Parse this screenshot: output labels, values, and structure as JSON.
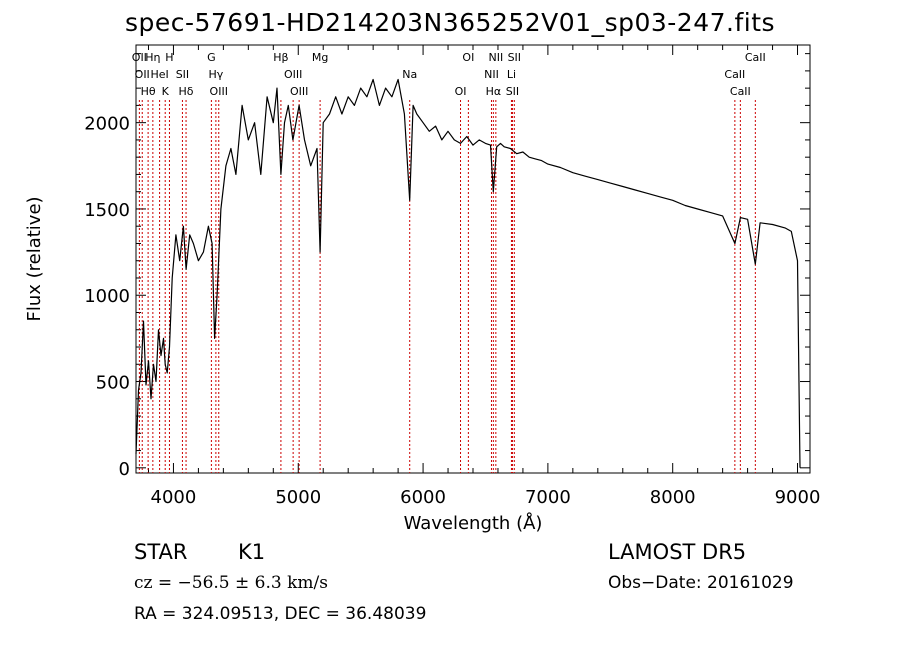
{
  "chart_data": {
    "type": "line",
    "title": "spec-57691-HD214203N365252V01_sp03-247.fits",
    "xlabel": "Wavelength (Å)",
    "ylabel": "Flux (relative)",
    "xlim": [
      3700,
      9100
    ],
    "ylim": [
      -30,
      2450
    ],
    "x_ticks": [
      4000,
      5000,
      6000,
      7000,
      8000,
      9000
    ],
    "y_ticks": [
      0,
      500,
      1000,
      1500,
      2000
    ],
    "grid": false,
    "series": [
      {
        "x": [
          3700,
          3720,
          3740,
          3760,
          3780,
          3800,
          3820,
          3840,
          3860,
          3880,
          3900,
          3920,
          3934,
          3950,
          3968,
          3990,
          4020,
          4050,
          4080,
          4101,
          4130,
          4160,
          4200,
          4240,
          4280,
          4310,
          4330,
          4350,
          4380,
          4420,
          4460,
          4500,
          4550,
          4600,
          4650,
          4700,
          4750,
          4800,
          4830,
          4861,
          4890,
          4920,
          4957,
          5007,
          5050,
          5100,
          5150,
          5175,
          5200,
          5250,
          5300,
          5350,
          5400,
          5450,
          5500,
          5550,
          5600,
          5650,
          5700,
          5750,
          5800,
          5850,
          5893,
          5920,
          5950,
          6000,
          6050,
          6100,
          6150,
          6200,
          6250,
          6300,
          6350,
          6400,
          6450,
          6500,
          6540,
          6563,
          6590,
          6620,
          6650,
          6700,
          6750,
          6800,
          6850,
          6900,
          6950,
          7000,
          7100,
          7200,
          7300,
          7400,
          7500,
          7600,
          7700,
          7800,
          7900,
          8000,
          8100,
          8200,
          8300,
          8400,
          8498,
          8542,
          8600,
          8662,
          8700,
          8800,
          8900,
          8950,
          9000,
          9020
        ],
        "y": [
          80,
          450,
          550,
          850,
          480,
          620,
          400,
          600,
          500,
          800,
          650,
          750,
          600,
          550,
          700,
          1100,
          1350,
          1200,
          1400,
          1150,
          1350,
          1300,
          1200,
          1250,
          1400,
          1300,
          750,
          1000,
          1500,
          1750,
          1850,
          1700,
          2100,
          1900,
          2000,
          1700,
          2150,
          2000,
          2200,
          1700,
          2000,
          2100,
          1900,
          2100,
          1900,
          1750,
          1850,
          1250,
          2000,
          2050,
          2150,
          2050,
          2150,
          2100,
          2200,
          2150,
          2250,
          2100,
          2200,
          2150,
          2250,
          2050,
          1550,
          2100,
          2050,
          2000,
          1950,
          1980,
          1900,
          1950,
          1900,
          1880,
          1920,
          1870,
          1900,
          1880,
          1870,
          1600,
          1860,
          1880,
          1860,
          1850,
          1820,
          1830,
          1800,
          1790,
          1780,
          1760,
          1740,
          1710,
          1690,
          1670,
          1650,
          1630,
          1610,
          1590,
          1570,
          1550,
          1520,
          1500,
          1480,
          1460,
          1300,
          1450,
          1440,
          1180,
          1420,
          1410,
          1390,
          1370,
          1200,
          0
        ]
      }
    ],
    "lines": [
      {
        "x": 3727,
        "labels": [
          "OII"
        ]
      },
      {
        "x": 3750,
        "labels": [
          "OII"
        ]
      },
      {
        "x": 3797,
        "labels": [
          "Hθ"
        ]
      },
      {
        "x": 3835,
        "labels": [
          "Hη"
        ]
      },
      {
        "x": 3889,
        "labels": [
          "HeI"
        ]
      },
      {
        "x": 3934,
        "labels": [
          "K"
        ]
      },
      {
        "x": 3968,
        "labels": [
          "H"
        ]
      },
      {
        "x": 4072,
        "labels": [
          "SII"
        ]
      },
      {
        "x": 4101,
        "labels": [
          "Hδ"
        ]
      },
      {
        "x": 4304,
        "labels": [
          "G"
        ]
      },
      {
        "x": 4340,
        "labels": [
          "Hγ"
        ]
      },
      {
        "x": 4363,
        "labels": [
          "OIII"
        ]
      },
      {
        "x": 4861,
        "labels": [
          "Hβ"
        ]
      },
      {
        "x": 4959,
        "labels": [
          "OIII"
        ]
      },
      {
        "x": 5007,
        "labels": [
          "OIII"
        ]
      },
      {
        "x": 5175,
        "labels": [
          "Mg"
        ]
      },
      {
        "x": 5893,
        "labels": [
          "Na"
        ]
      },
      {
        "x": 6300,
        "labels": [
          "OI"
        ]
      },
      {
        "x": 6363,
        "labels": [
          "OI"
        ]
      },
      {
        "x": 6548,
        "labels": [
          "NII"
        ]
      },
      {
        "x": 6563,
        "labels": [
          "Hα"
        ]
      },
      {
        "x": 6583,
        "labels": [
          "NII"
        ]
      },
      {
        "x": 6708,
        "labels": [
          "Li"
        ]
      },
      {
        "x": 6716,
        "labels": [
          "SII"
        ]
      },
      {
        "x": 6731,
        "labels": [
          "SII"
        ]
      },
      {
        "x": 8498,
        "labels": [
          "CaII"
        ]
      },
      {
        "x": 8542,
        "labels": [
          "CaII"
        ]
      },
      {
        "x": 8662,
        "labels": [
          "CaII"
        ]
      }
    ]
  },
  "info": {
    "star_label": "STAR",
    "subclass": "K1",
    "survey": "LAMOST DR5",
    "velocity": "cz = −56.5 ± 6.3 km/s",
    "obs_date": "Obs−Date: 20161029",
    "coords": "RA = 324.09513, DEC =  36.48039"
  },
  "colors": {
    "line": "#000000",
    "marker": "#cc0000"
  }
}
